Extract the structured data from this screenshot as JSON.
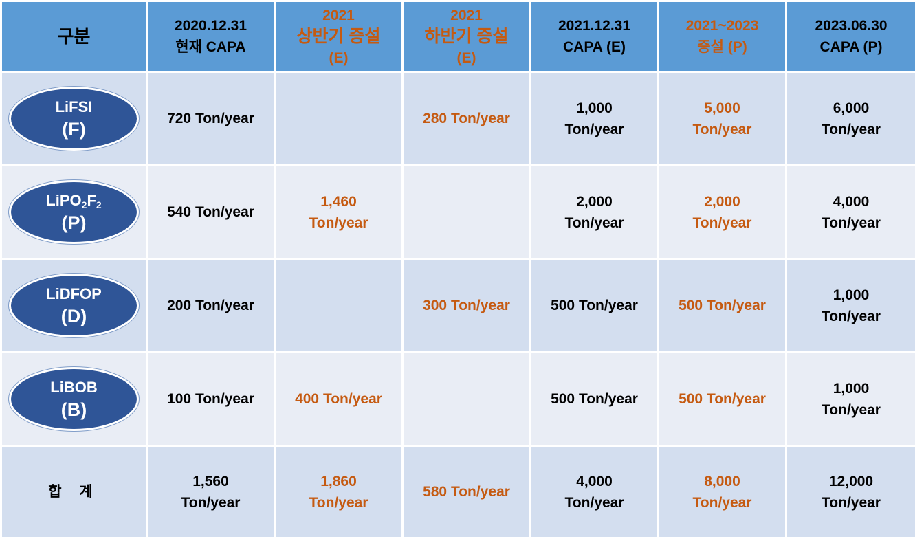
{
  "headers": [
    {
      "lines": [
        "구분"
      ]
    },
    {
      "lines": [
        "2020.12.31",
        "현재 CAPA"
      ]
    },
    {
      "lines": [
        "2021",
        "상반기 증설",
        "(E)"
      ]
    },
    {
      "lines": [
        "2021",
        "하반기 증설",
        "(E)"
      ]
    },
    {
      "lines": [
        "2021.12.31",
        "CAPA (E)"
      ]
    },
    {
      "lines": [
        "2021~2023",
        "증설 (P)"
      ]
    },
    {
      "lines": [
        "2023.06.30",
        "CAPA (P)"
      ]
    }
  ],
  "rows": [
    {
      "name_main": "LiFSI",
      "name_sub1": "",
      "name_mid": "",
      "name_sub2": "",
      "abbr": "(F)",
      "cells": [
        [
          "720 Ton/year"
        ],
        [],
        [
          "280 Ton/year"
        ],
        [
          "1,000",
          "Ton/year"
        ],
        [
          "5,000",
          "Ton/year"
        ],
        [
          "6,000",
          "Ton/year"
        ]
      ]
    },
    {
      "name_main": "LiPO",
      "name_sub1": "2",
      "name_mid": "F",
      "name_sub2": "2",
      "abbr": "(P)",
      "cells": [
        [
          "540 Ton/year"
        ],
        [
          "1,460",
          "Ton/year"
        ],
        [],
        [
          "2,000",
          "Ton/year"
        ],
        [
          "2,000",
          "Ton/year"
        ],
        [
          "4,000",
          "Ton/year"
        ]
      ]
    },
    {
      "name_main": "LiDFOP",
      "name_sub1": "",
      "name_mid": "",
      "name_sub2": "",
      "abbr": "(D)",
      "cells": [
        [
          "200 Ton/year"
        ],
        [],
        [
          "300 Ton/year"
        ],
        [
          "500 Ton/year"
        ],
        [
          "500 Ton/year"
        ],
        [
          "1,000",
          "Ton/year"
        ]
      ]
    },
    {
      "name_main": "LiBOB",
      "name_sub1": "",
      "name_mid": "",
      "name_sub2": "",
      "abbr": "(B)",
      "cells": [
        [
          "100 Ton/year"
        ],
        [
          "400 Ton/year"
        ],
        [],
        [
          "500 Ton/year"
        ],
        [
          "500 Ton/year"
        ],
        [
          "1,000",
          "Ton/year"
        ]
      ]
    }
  ],
  "total": {
    "label": "합 계",
    "cells": [
      [
        "1,560",
        "Ton/year"
      ],
      [
        "1,860",
        "Ton/year"
      ],
      [
        "580 Ton/year"
      ],
      [
        "4,000",
        "Ton/year"
      ],
      [
        "8,000",
        "Ton/year"
      ],
      [
        "12,000",
        "Ton/year"
      ]
    ]
  },
  "colors": {
    "header_bg": "#5b9bd5",
    "accent_orange": "#c55a11",
    "oval_fill": "#2f5597",
    "row_dark": "#d3deef",
    "row_light": "#e9edf5"
  }
}
